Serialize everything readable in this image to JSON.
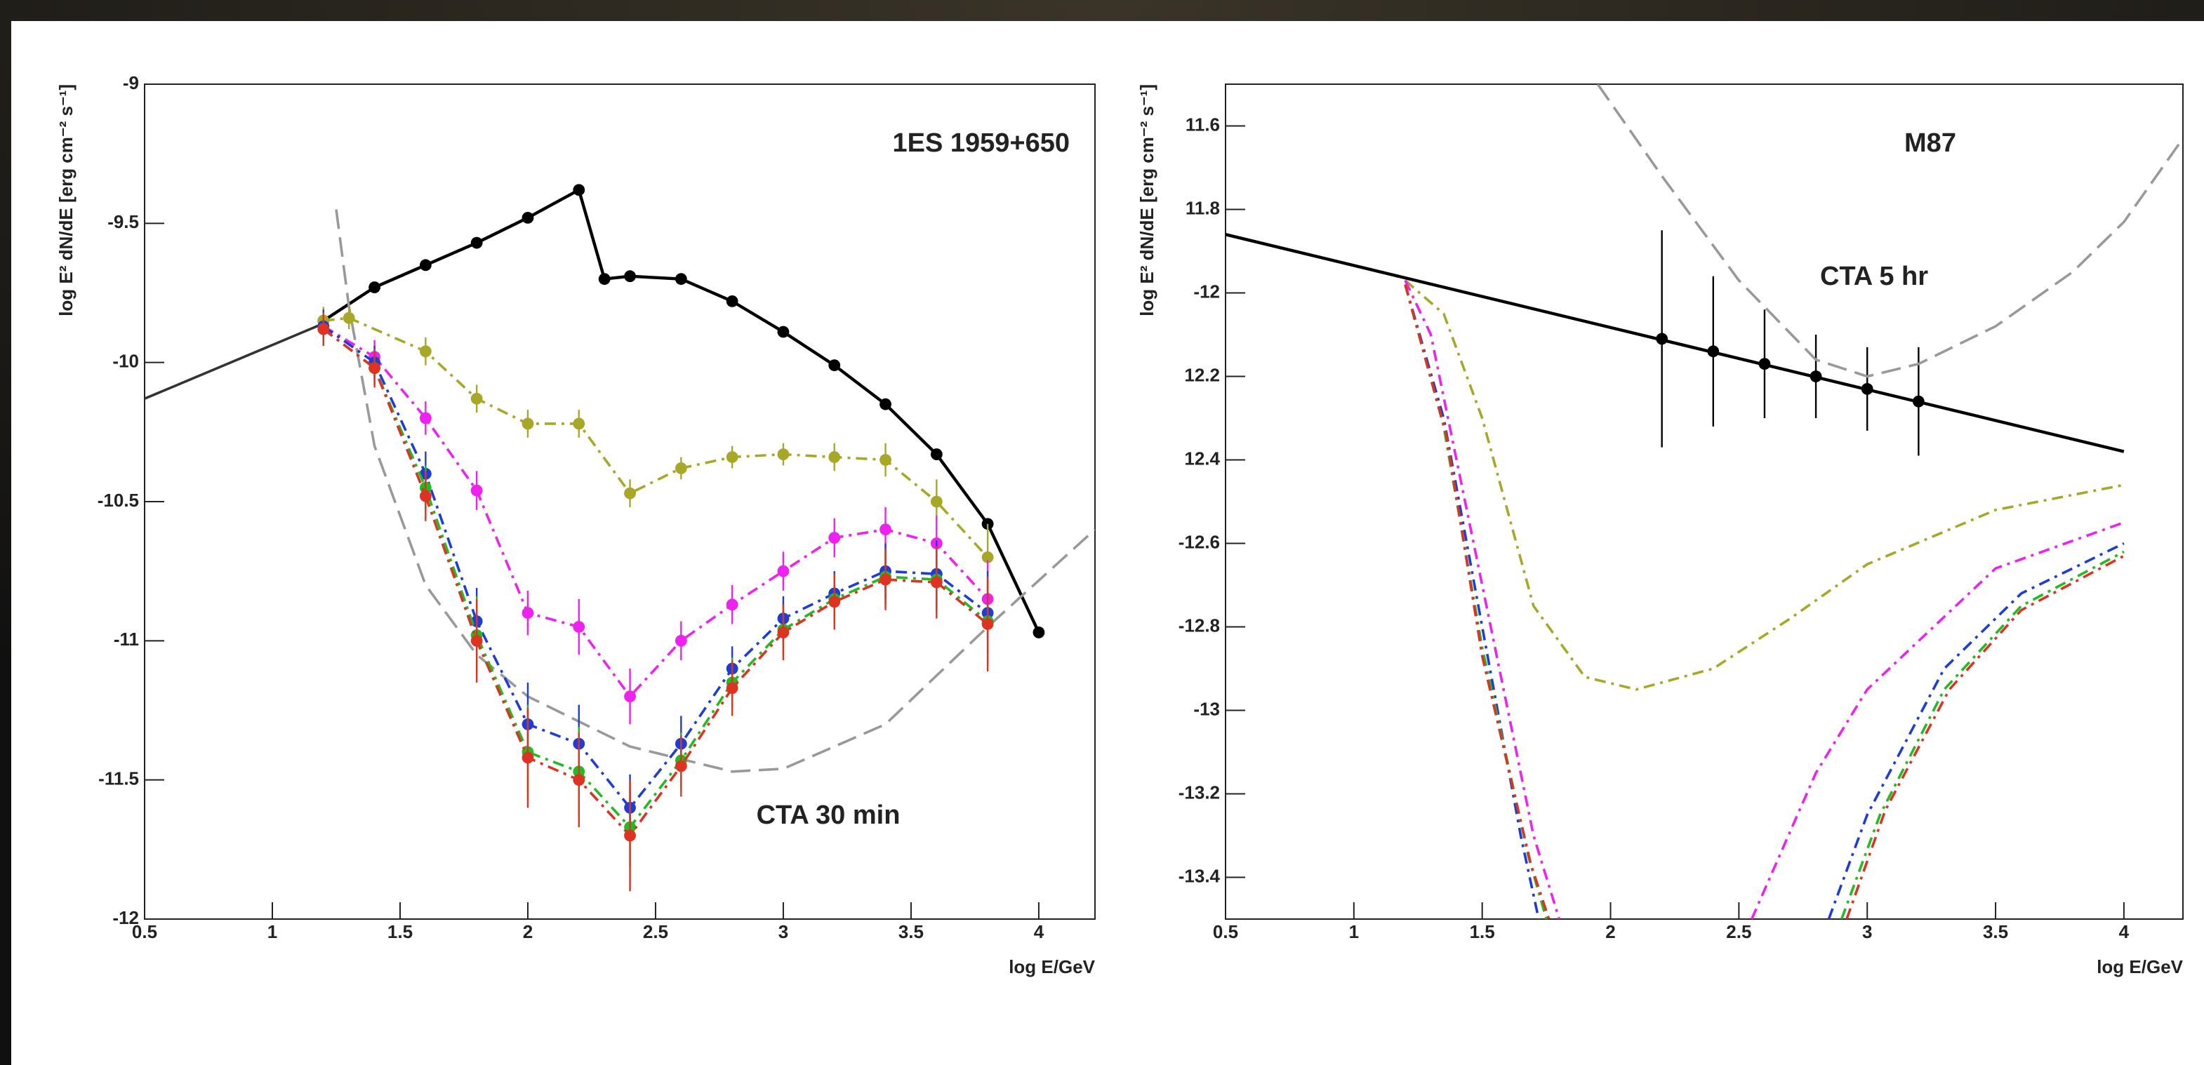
{
  "chart_data": [
    {
      "type": "line",
      "title": "1ES 1959+650",
      "annotation": "CTA 30 min",
      "xlabel": "log E/GeV",
      "ylabel": "log E² dN/dE [erg cm⁻² s⁻¹]",
      "xlim": [
        0.5,
        4.22
      ],
      "ylim": [
        -12,
        -9
      ],
      "xticks": [
        0.5,
        1,
        1.5,
        2,
        2.5,
        3,
        3.5,
        4
      ],
      "yticks": [
        -9,
        -9.5,
        -10,
        -10.5,
        -11,
        -11.5,
        -12
      ],
      "series": [
        {
          "color": "#333333",
          "style": "solid",
          "x": [
            0.5,
            1.2
          ],
          "values": [
            -10.13,
            -9.86
          ]
        },
        {
          "color": "#000000",
          "style": "solid",
          "markers": true,
          "x": [
            1.2,
            1.4,
            1.6,
            1.8,
            2.0,
            2.2,
            2.3,
            2.4,
            2.6,
            2.8,
            3.0,
            3.2,
            3.4,
            3.6,
            3.8,
            4.0
          ],
          "values": [
            -9.85,
            -9.73,
            -9.65,
            -9.57,
            -9.48,
            -9.38,
            -9.7,
            -9.69,
            -9.7,
            -9.78,
            -9.89,
            -10.01,
            -10.15,
            -10.33,
            -10.58,
            -10.97
          ]
        },
        {
          "color": "#999999",
          "style": "dashed",
          "x": [
            1.25,
            1.3,
            1.4,
            1.6,
            1.8,
            2.0,
            2.4,
            2.8,
            3.0,
            3.4,
            3.8,
            4.22
          ],
          "values": [
            -9.45,
            -9.8,
            -10.3,
            -10.8,
            -11.05,
            -11.2,
            -11.38,
            -11.47,
            -11.46,
            -11.3,
            -10.95,
            -10.6
          ]
        },
        {
          "color": "#a8a828",
          "style": "dashdot",
          "markers": true,
          "x": [
            1.2,
            1.3,
            1.6,
            1.8,
            2.0,
            2.2,
            2.4,
            2.6,
            2.8,
            3.0,
            3.2,
            3.4,
            3.6,
            3.8
          ],
          "values": [
            -9.85,
            -9.84,
            -9.96,
            -10.13,
            -10.22,
            -10.22,
            -10.47,
            -10.38,
            -10.34,
            -10.33,
            -10.34,
            -10.35,
            -10.5,
            -10.7
          ],
          "errors": [
            0.05,
            0.04,
            0.05,
            0.05,
            0.05,
            0.05,
            0.05,
            0.04,
            0.04,
            0.04,
            0.05,
            0.06,
            0.08,
            0.12
          ]
        },
        {
          "color": "#ee22ee",
          "style": "dashdot",
          "markers": true,
          "x": [
            1.2,
            1.4,
            1.6,
            1.8,
            2.0,
            2.2,
            2.4,
            2.6,
            2.8,
            3.0,
            3.2,
            3.4,
            3.6,
            3.8
          ],
          "values": [
            -9.87,
            -9.98,
            -10.2,
            -10.46,
            -10.9,
            -10.95,
            -11.2,
            -11.0,
            -10.87,
            -10.75,
            -10.63,
            -10.6,
            -10.65,
            -10.85
          ],
          "errors": [
            0.05,
            0.06,
            0.06,
            0.07,
            0.08,
            0.1,
            0.1,
            0.07,
            0.07,
            0.07,
            0.07,
            0.08,
            0.1,
            0.14
          ]
        },
        {
          "color": "#1d3cd8",
          "style": "dashdot",
          "markers": true,
          "x": [
            1.2,
            1.4,
            1.6,
            1.8,
            2.0,
            2.2,
            2.4,
            2.6,
            2.8,
            3.0,
            3.2,
            3.4,
            3.6,
            3.8
          ],
          "values": [
            -9.87,
            -10.0,
            -10.4,
            -10.93,
            -11.3,
            -11.37,
            -11.6,
            -11.37,
            -11.1,
            -10.92,
            -10.83,
            -10.75,
            -10.76,
            -10.9
          ],
          "errors": [
            0.06,
            0.06,
            0.08,
            0.12,
            0.15,
            0.14,
            0.12,
            0.1,
            0.08,
            0.08,
            0.08,
            0.1,
            0.12,
            0.15
          ]
        },
        {
          "color": "#22bb22",
          "style": "dashdot",
          "markers": true,
          "x": [
            1.2,
            1.4,
            1.6,
            1.8,
            2.0,
            2.2,
            2.4,
            2.6,
            2.8,
            3.0,
            3.2,
            3.4,
            3.6,
            3.8
          ],
          "values": [
            -9.88,
            -10.02,
            -10.45,
            -10.98,
            -11.4,
            -11.47,
            -11.67,
            -11.43,
            -11.15,
            -10.96,
            -10.85,
            -10.77,
            -10.78,
            -10.93
          ],
          "errors": [
            0.06,
            0.06,
            0.08,
            0.14,
            0.17,
            0.16,
            0.14,
            0.1,
            0.09,
            0.09,
            0.09,
            0.1,
            0.12,
            0.16
          ]
        },
        {
          "color": "#dd3322",
          "style": "dashdot",
          "markers": true,
          "x": [
            1.2,
            1.4,
            1.6,
            1.8,
            2.0,
            2.2,
            2.4,
            2.6,
            2.8,
            3.0,
            3.2,
            3.4,
            3.6,
            3.8
          ],
          "values": [
            -9.88,
            -10.02,
            -10.48,
            -11.0,
            -11.42,
            -11.5,
            -11.7,
            -11.45,
            -11.17,
            -10.97,
            -10.86,
            -10.78,
            -10.79,
            -10.94
          ],
          "errors": [
            0.06,
            0.07,
            0.09,
            0.15,
            0.18,
            0.17,
            0.2,
            0.11,
            0.1,
            0.1,
            0.1,
            0.11,
            0.13,
            0.17
          ]
        }
      ]
    },
    {
      "type": "line",
      "title": "M87",
      "annotation": "CTA 5 hr",
      "xlabel": "log E/GeV",
      "ylabel": "log E² dN/dE [erg cm⁻² s⁻¹]",
      "xlim": [
        0.5,
        4.23
      ],
      "ylim": [
        -13.5,
        -11.5
      ],
      "xticks": [
        0.5,
        1,
        1.5,
        2,
        2.5,
        3,
        3.5,
        4
      ],
      "yticks": [
        {
          "value": -11.6,
          "label": "11.6"
        },
        {
          "value": -11.8,
          "label": "11.8"
        },
        -12,
        {
          "value": -12.2,
          "label": "12.2"
        },
        {
          "value": -12.4,
          "label": "12.4"
        },
        -12.6,
        -12.8,
        -13,
        -13.2,
        -13.4
      ],
      "series": [
        {
          "color": "#000000",
          "style": "solid",
          "x": [
            0.5,
            4.0
          ],
          "values": [
            -11.86,
            -12.38
          ]
        },
        {
          "color": "#000000",
          "style": "none",
          "markers": true,
          "x": [
            2.2,
            2.4,
            2.6,
            2.8,
            3.0,
            3.2
          ],
          "values": [
            -12.11,
            -12.14,
            -12.17,
            -12.2,
            -12.23,
            -12.26
          ],
          "errors": [
            0.26,
            0.18,
            0.13,
            0.1,
            0.1,
            0.13
          ]
        },
        {
          "color": "#999999",
          "style": "dashed",
          "x": [
            1.95,
            2.2,
            2.5,
            2.8,
            3.0,
            3.2,
            3.5,
            3.8,
            4.0,
            4.23
          ],
          "values": [
            -11.5,
            -11.72,
            -11.97,
            -12.16,
            -12.2,
            -12.17,
            -12.08,
            -11.95,
            -11.83,
            -11.63
          ]
        },
        {
          "color": "#a8a828",
          "style": "dashdot",
          "x": [
            1.2,
            1.35,
            1.5,
            1.7,
            1.9,
            2.1,
            2.4,
            2.7,
            3.0,
            3.5,
            4.0
          ],
          "values": [
            -11.97,
            -12.05,
            -12.3,
            -12.75,
            -12.92,
            -12.95,
            -12.9,
            -12.78,
            -12.65,
            -12.52,
            -12.46
          ]
        },
        {
          "color": "#ee22ee",
          "style": "dashdot",
          "x": [
            1.2,
            1.3,
            1.5,
            1.7,
            1.8,
            null,
            2.55,
            2.8,
            3.0,
            3.5,
            4.0
          ],
          "values": [
            -11.97,
            -12.1,
            -12.7,
            -13.3,
            -13.5,
            null,
            -13.5,
            -13.15,
            -12.95,
            -12.66,
            -12.55
          ]
        },
        {
          "color": "#1d3cd8",
          "style": "dashdot",
          "x": [
            1.2,
            1.35,
            1.5,
            1.65,
            1.72,
            null,
            2.85,
            3.0,
            3.3,
            3.6,
            4.0
          ],
          "values": [
            -11.98,
            -12.3,
            -12.8,
            -13.3,
            -13.5,
            null,
            -13.5,
            -13.25,
            -12.9,
            -12.72,
            -12.6
          ]
        },
        {
          "color": "#22bb22",
          "style": "dashdot",
          "x": [
            1.2,
            1.35,
            1.5,
            1.68,
            1.75,
            null,
            2.9,
            3.05,
            3.3,
            3.6,
            4.0
          ],
          "values": [
            -11.98,
            -12.32,
            -12.85,
            -13.35,
            -13.5,
            null,
            -13.5,
            -13.25,
            -12.95,
            -12.75,
            -12.62
          ]
        },
        {
          "color": "#dd3322",
          "style": "dashdot",
          "x": [
            1.2,
            1.36,
            1.5,
            1.69,
            1.76,
            null,
            2.92,
            3.07,
            3.32,
            3.6,
            4.0
          ],
          "values": [
            -11.98,
            -12.34,
            -12.87,
            -13.37,
            -13.5,
            null,
            -13.5,
            -13.24,
            -12.95,
            -12.76,
            -12.63
          ]
        }
      ]
    }
  ]
}
